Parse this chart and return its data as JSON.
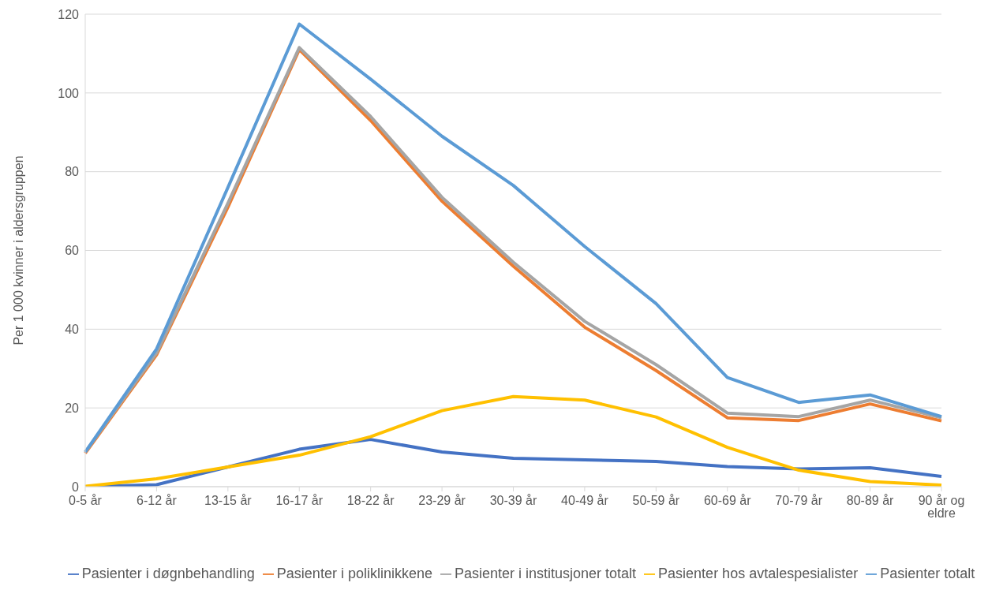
{
  "chart_data": {
    "type": "line",
    "ylabel": "Per 1 000 kvinner i aldersgruppen",
    "categories": [
      "0-5 år",
      "6-12 år",
      "13-15 år",
      "16-17 år",
      "18-22 år",
      "23-29 år",
      "30-39 år",
      "40-49 år",
      "50-59 år",
      "60-69 år",
      "70-79 år",
      "80-89 år",
      "90 år og eldre"
    ],
    "series": [
      {
        "name": "Pasienter i døgnbehandling",
        "color": "#4472c4",
        "values": [
          0,
          0.5,
          5,
          9.5,
          12,
          8.8,
          7.2,
          6.8,
          6.4,
          5.1,
          4.5,
          4.8,
          2.6
        ]
      },
      {
        "name": "Pasienter i poliklinikkene",
        "color": "#ed7d31",
        "values": [
          8.5,
          33.5,
          71,
          111,
          93,
          72.5,
          56,
          40.5,
          29.5,
          17.5,
          16.8,
          21,
          16.7
        ]
      },
      {
        "name": "Pasienter i institusjoner totalt",
        "color": "#a5a5a5",
        "values": [
          8.8,
          34,
          72,
          111.5,
          94,
          73.5,
          57,
          42,
          31,
          18.7,
          17.8,
          22,
          17.5
        ]
      },
      {
        "name": "Pasienter hos avtalespesialister",
        "color": "#ffc000",
        "values": [
          0.1,
          2,
          5,
          8,
          12.7,
          19.3,
          22.9,
          22,
          17.7,
          10,
          4.2,
          1.3,
          0.4
        ]
      },
      {
        "name": "Pasienter totalt",
        "color": "#5b9bd5",
        "values": [
          8.8,
          35,
          76,
          117.5,
          103.5,
          89,
          76.5,
          61,
          46.5,
          27.7,
          21.4,
          23.3,
          17.8
        ]
      }
    ],
    "ylim": [
      0,
      120
    ],
    "yticks": [
      0,
      20,
      40,
      60,
      80,
      100,
      120
    ],
    "grid": "y",
    "legend": "bottom",
    "marker": "none",
    "line_style": "solid"
  }
}
